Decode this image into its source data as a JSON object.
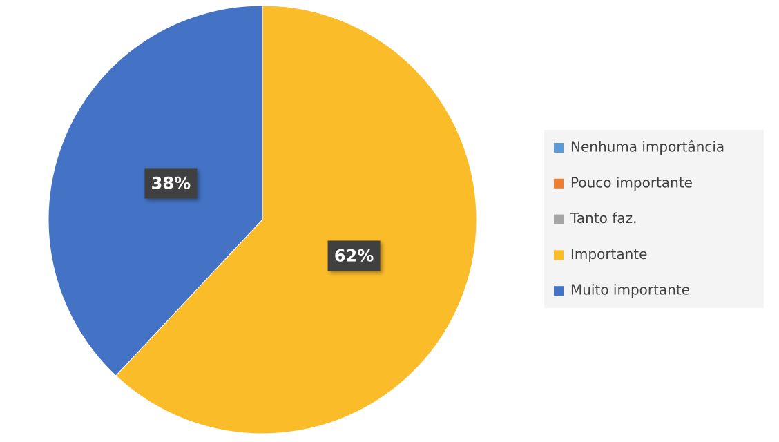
{
  "chart_data": {
    "type": "pie",
    "categories": [
      "Nenhuma importância",
      "Pouco importante",
      "Tanto faz.",
      "Importante",
      "Muito importante"
    ],
    "values": [
      0,
      0,
      0,
      62,
      38
    ],
    "value_labels": [
      null,
      null,
      null,
      "62%",
      "38%"
    ],
    "colors": [
      "#5b9bd5",
      "#ed7d31",
      "#a5a5a5",
      "#fbbc2a",
      "#4472c4"
    ],
    "legend": "right"
  }
}
